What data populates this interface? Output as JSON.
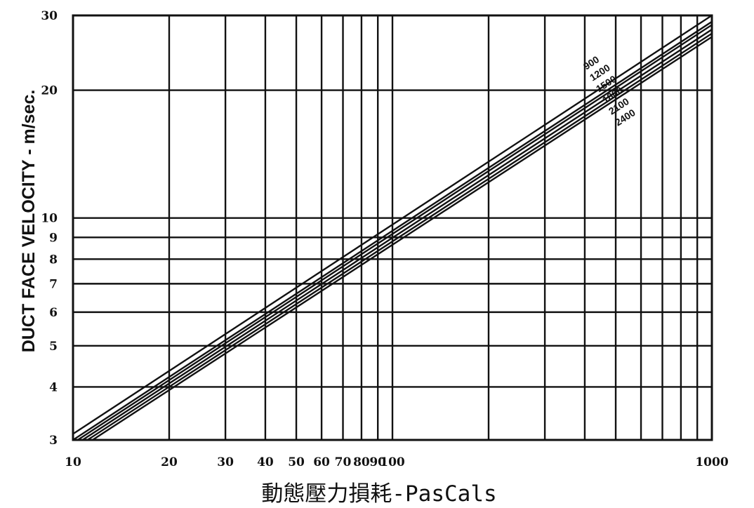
{
  "chart_data": {
    "type": "line",
    "scale": {
      "x": "log",
      "y": "log"
    },
    "xlim": [
      10,
      1000
    ],
    "ylim": [
      3,
      30
    ],
    "xlabel": "動態壓力損耗-PasCals",
    "ylabel": "DUCT FACE VELOCITY - m/sec.",
    "xticks": [
      {
        "v": 10,
        "label": "10"
      },
      {
        "v": 20,
        "label": "20"
      },
      {
        "v": 30,
        "label": "30"
      },
      {
        "v": 40,
        "label": "40"
      },
      {
        "v": 50,
        "label": "50"
      },
      {
        "v": 60,
        "label": "60"
      },
      {
        "v": 70,
        "label": "70"
      },
      {
        "v": 80,
        "label": "80"
      },
      {
        "v": 90,
        "label": "90"
      },
      {
        "v": 100,
        "label": "100"
      },
      {
        "v": 1000,
        "label": "1000"
      }
    ],
    "yticks": [
      {
        "v": 3,
        "label": "3"
      },
      {
        "v": 4,
        "label": "4"
      },
      {
        "v": 5,
        "label": "5"
      },
      {
        "v": 6,
        "label": "6"
      },
      {
        "v": 7,
        "label": "7"
      },
      {
        "v": 8,
        "label": "8"
      },
      {
        "v": 9,
        "label": "9"
      },
      {
        "v": 10,
        "label": "10"
      },
      {
        "v": 20,
        "label": "20"
      },
      {
        "v": 30,
        "label": "30"
      }
    ],
    "xgrid": [
      10,
      20,
      30,
      40,
      50,
      60,
      70,
      80,
      90,
      100,
      200,
      300,
      400,
      500,
      600,
      700,
      800,
      900,
      1000
    ],
    "ygrid": [
      3,
      4,
      5,
      6,
      7,
      8,
      9,
      10,
      20,
      30
    ],
    "grid": true,
    "series": [
      {
        "name": "900",
        "points": [
          [
            10,
            3.1
          ],
          [
            1000,
            30.0
          ]
        ]
      },
      {
        "name": "1200",
        "points": [
          [
            10,
            3.0
          ],
          [
            1000,
            29.0
          ]
        ]
      },
      {
        "name": "1500",
        "points": [
          [
            10,
            2.95
          ],
          [
            1000,
            28.5
          ]
        ]
      },
      {
        "name": "1800",
        "points": [
          [
            10,
            2.9
          ],
          [
            1000,
            27.8
          ]
        ]
      },
      {
        "name": "2100",
        "points": [
          [
            10,
            2.85
          ],
          [
            1000,
            27.2
          ]
        ]
      },
      {
        "name": "2400",
        "points": [
          [
            10,
            2.8
          ],
          [
            1000,
            26.7
          ]
        ]
      }
    ]
  }
}
